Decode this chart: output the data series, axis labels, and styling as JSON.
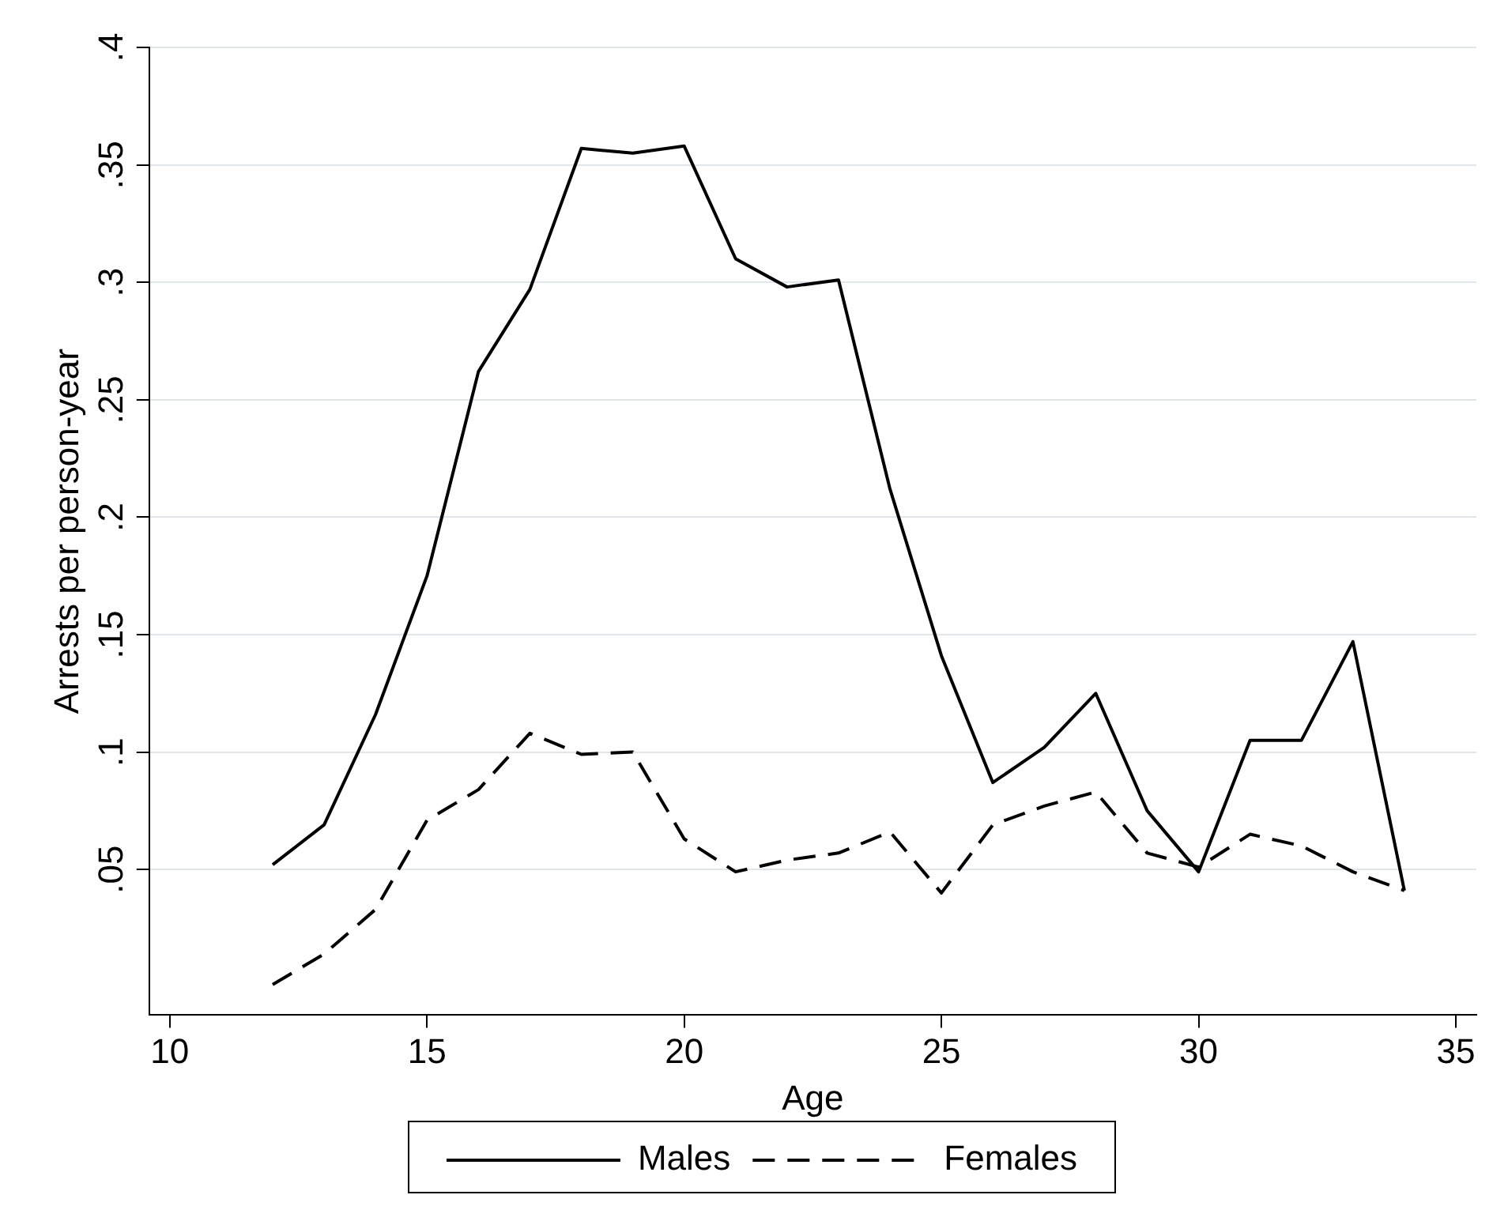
{
  "chart_data": {
    "type": "line",
    "xlabel": "Age",
    "ylabel": "Arrests per person-year",
    "x": [
      12,
      13,
      14,
      15,
      16,
      17,
      18,
      19,
      20,
      21,
      22,
      23,
      24,
      25,
      26,
      27,
      28,
      29,
      30,
      31,
      32,
      33,
      34
    ],
    "series": [
      {
        "name": "Males",
        "color": "#000000",
        "line_style": "solid",
        "values": [
          0.052,
          0.069,
          0.116,
          0.175,
          0.262,
          0.297,
          0.357,
          0.355,
          0.358,
          0.31,
          0.298,
          0.301,
          0.212,
          0.141,
          0.087,
          0.102,
          0.125,
          0.075,
          0.049,
          0.105,
          0.105,
          0.147,
          0.041
        ]
      },
      {
        "name": "Females",
        "color": "#000000",
        "line_style": "dashed",
        "values": [
          0.001,
          0.014,
          0.033,
          0.071,
          0.084,
          0.108,
          0.099,
          0.1,
          0.063,
          0.049,
          0.054,
          0.057,
          0.066,
          0.04,
          0.069,
          0.077,
          0.083,
          0.057,
          0.051,
          0.065,
          0.06,
          0.049,
          0.041
        ]
      }
    ],
    "xlim": [
      9.6,
      35.4
    ],
    "xticks": [
      10,
      15,
      20,
      25,
      30,
      35
    ],
    "ylim": [
      -0.012,
      0.4
    ],
    "yticks": [
      {
        "value": 0.05,
        "label": ".05"
      },
      {
        "value": 0.1,
        "label": ".1"
      },
      {
        "value": 0.15,
        "label": ".15"
      },
      {
        "value": 0.2,
        "label": ".2"
      },
      {
        "value": 0.25,
        "label": ".25"
      },
      {
        "value": 0.3,
        "label": ".3"
      },
      {
        "value": 0.35,
        "label": ".35"
      },
      {
        "value": 0.4,
        "label": ".4"
      }
    ],
    "grid": "y",
    "legend": "bottom",
    "marker": "none"
  }
}
